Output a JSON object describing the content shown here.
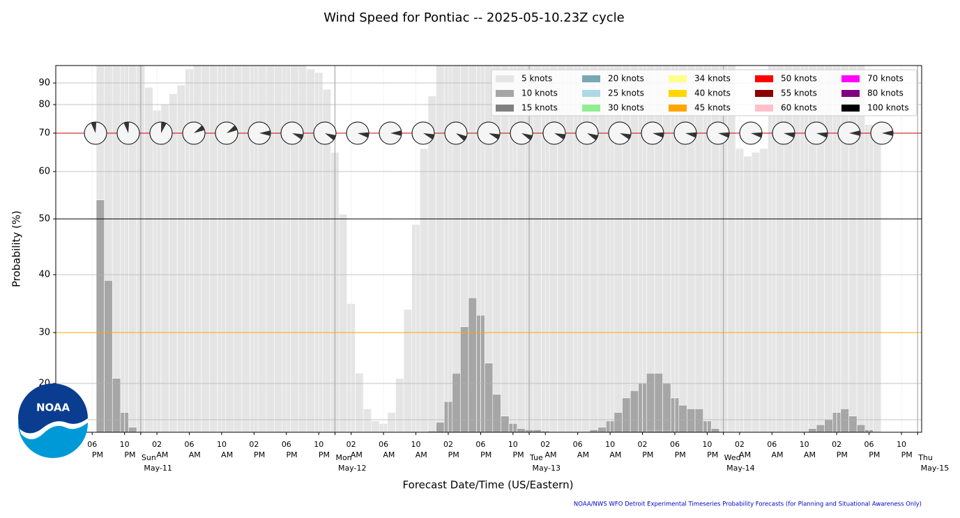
{
  "chart_data": {
    "type": "bar",
    "title": "Wind Speed for Pontiac -- 2025-05-10.23Z cycle",
    "ylabel": "Probability (%)",
    "xlabel": "Forecast Date/Time (US/Eastern)",
    "footer": "NOAA/NWS WFO Detroit Experimental Timeseries Probability Forecasts (for Planning and Situational Awareness Only)",
    "logo_text": "NOAA",
    "ylim": [
      0,
      95
    ],
    "yminorticks": [
      10
    ],
    "yticks": [
      20,
      30,
      40,
      50,
      60,
      70,
      80,
      90
    ],
    "grid": true,
    "legend_position": "upper right",
    "reference_lines": [
      {
        "value": 70,
        "color": "#cc0000"
      },
      {
        "value": 50,
        "color": "#000000"
      },
      {
        "value": 30,
        "color": "#ffa500"
      }
    ],
    "categories": [
      null,
      null,
      null,
      null,
      "06 PM",
      null,
      null,
      null,
      "10 PM",
      null,
      "Sun May-11",
      null,
      "02 AM",
      null,
      null,
      null,
      "06 AM",
      null,
      null,
      null,
      "10 AM",
      null,
      null,
      null,
      "02 PM",
      null,
      null,
      null,
      "06 PM",
      null,
      null,
      null,
      "10 PM",
      null,
      "Mon May-12",
      null,
      "02 AM",
      null,
      null,
      null,
      "06 AM",
      null,
      null,
      null,
      "10 AM",
      null,
      null,
      null,
      "02 PM",
      null,
      null,
      null,
      "06 PM",
      null,
      null,
      null,
      "10 PM",
      null,
      "Tue May-13",
      null,
      "02 AM",
      null,
      null,
      null,
      "06 AM",
      null,
      null,
      null,
      "10 AM",
      null,
      null,
      null,
      "02 PM",
      null,
      null,
      null,
      "06 PM",
      null,
      null,
      null,
      "10 PM",
      null,
      "Wed May-14",
      null,
      "02 AM",
      null,
      null,
      null,
      "06 AM",
      null,
      null,
      null,
      "10 AM",
      null,
      null,
      null,
      "02 PM",
      null,
      null,
      null,
      "06 PM",
      null,
      null,
      null,
      "10 PM",
      null,
      "Thu May-15"
    ],
    "series": [
      {
        "name": "5 knots",
        "color": "#e5e5e5",
        "values": [
          0,
          0,
          0,
          0,
          0,
          100,
          100,
          100,
          100,
          100,
          100,
          88,
          78,
          80,
          85,
          89,
          94,
          100,
          100,
          100,
          100,
          100,
          100,
          100,
          100,
          100,
          100,
          100,
          100,
          100,
          100,
          94,
          93,
          87,
          65,
          51,
          35,
          22,
          13,
          9,
          7,
          12,
          21,
          34,
          49,
          66,
          84,
          100,
          100,
          100,
          100,
          100,
          100,
          100,
          100,
          100,
          100,
          100,
          100,
          100,
          100,
          100,
          100,
          100,
          100,
          100,
          100,
          100,
          100,
          100,
          100,
          100,
          100,
          100,
          100,
          100,
          100,
          100,
          100,
          100,
          100,
          100,
          100,
          100,
          66,
          64,
          65,
          66,
          100,
          100,
          100,
          100,
          100,
          100,
          100,
          100,
          100,
          100,
          100,
          100,
          73,
          73,
          0,
          0,
          0,
          0,
          0
        ]
      },
      {
        "name": "10 knots",
        "color": "#a6a6a6",
        "values": [
          0,
          0,
          0,
          0,
          0,
          54,
          39,
          21,
          12,
          4,
          0,
          0,
          0,
          0,
          0,
          0,
          0,
          0,
          0,
          0,
          0,
          0,
          0,
          0,
          0,
          0,
          0,
          0,
          0,
          0,
          0,
          0,
          0,
          0,
          0,
          0,
          0,
          0,
          0,
          0,
          0,
          0,
          0,
          0,
          0,
          0,
          1,
          8,
          15,
          22,
          31,
          36,
          33,
          24,
          17,
          11,
          7,
          3,
          2,
          2,
          1,
          0,
          0,
          0,
          0,
          0,
          2,
          4,
          9,
          12,
          16,
          18,
          20,
          22,
          22,
          20,
          16,
          14,
          13,
          13,
          9,
          3,
          0,
          0,
          0,
          0,
          0,
          0,
          0,
          0,
          0,
          0,
          0,
          3,
          6,
          10,
          12,
          13,
          11,
          6,
          2,
          0,
          0,
          0,
          0,
          0,
          0
        ]
      },
      {
        "name": "15 knots",
        "color": "#808080",
        "values": [
          0,
          0,
          0,
          0,
          0,
          0,
          0,
          0,
          0,
          0,
          0,
          0,
          0,
          0,
          0,
          0,
          0,
          0,
          0,
          0,
          0,
          0,
          0,
          0,
          0,
          0,
          0,
          0,
          0,
          0,
          0,
          0,
          0,
          0,
          0,
          0,
          0,
          0,
          0,
          0,
          0,
          0,
          0,
          0,
          0,
          0,
          0,
          0,
          0,
          0,
          0,
          0,
          0,
          0,
          0,
          0,
          0,
          0,
          0,
          0,
          0,
          0,
          0,
          0,
          0,
          0,
          0,
          0,
          0,
          0,
          0,
          0,
          0,
          1,
          1,
          1,
          0,
          0,
          0,
          0,
          0,
          0,
          0,
          0,
          0,
          0,
          0,
          0,
          0,
          0,
          0,
          0,
          0,
          0,
          0,
          0,
          0,
          0,
          0,
          0,
          0,
          0,
          0,
          0,
          0,
          0,
          0
        ]
      },
      {
        "name": "20 knots",
        "color": "#78a8b2"
      },
      {
        "name": "25 knots",
        "color": "#add8e6"
      },
      {
        "name": "30 knots",
        "color": "#90ee90"
      },
      {
        "name": "34 knots",
        "color": "#ffff8c"
      },
      {
        "name": "40 knots",
        "color": "#ffd700"
      },
      {
        "name": "45 knots",
        "color": "#ffa500"
      },
      {
        "name": "50 knots",
        "color": "#ff0000"
      },
      {
        "name": "55 knots",
        "color": "#8b0000"
      },
      {
        "name": "60 knots",
        "color": "#ffc0cb"
      },
      {
        "name": "70 knots",
        "color": "#ff00ff"
      },
      {
        "name": "80 knots",
        "color": "#800080"
      },
      {
        "name": "100 knots",
        "color": "#000000"
      }
    ],
    "wind_direction_deg": [
      350,
      350,
      15,
      60,
      60,
      90,
      110,
      115,
      100,
      90,
      110,
      120,
      110,
      115,
      110,
      115,
      110,
      100,
      100,
      100,
      100,
      100,
      100,
      90,
      90
    ]
  }
}
